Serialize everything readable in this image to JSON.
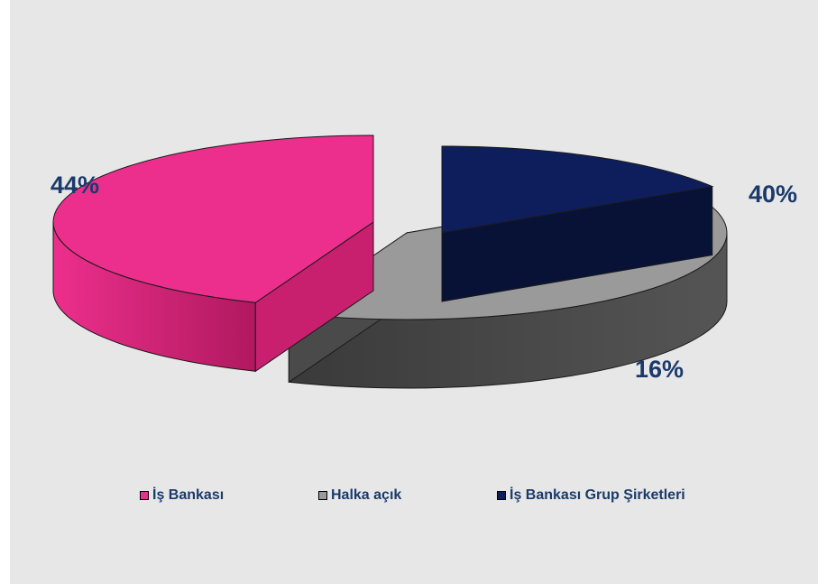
{
  "chart_data": {
    "type": "pie",
    "title": "",
    "series": [
      {
        "name": "İş Bankası",
        "value": 44,
        "label": "44%",
        "color": "#ec2f8c",
        "side_color": "#c81f6f"
      },
      {
        "name": "Halka açık",
        "value": 40,
        "label": "40%",
        "color": "#9a9a9a",
        "side_color": "#4a4a4a"
      },
      {
        "name": "İş Bankası Grup Şirketleri",
        "value": 16,
        "label": "16%",
        "color": "#0e1e5c",
        "side_color": "#081236"
      }
    ],
    "legend_position": "bottom",
    "style": "3d-exploded"
  }
}
